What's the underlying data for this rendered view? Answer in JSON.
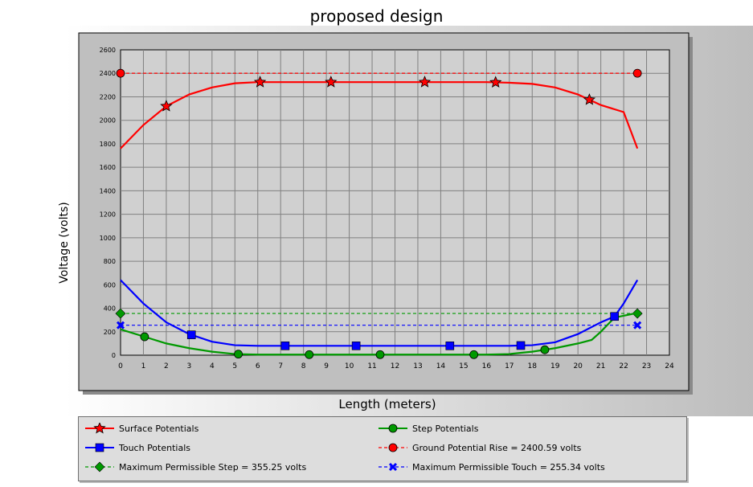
{
  "chart_data": {
    "type": "line",
    "title": "proposed design",
    "xlabel": "Length (meters)",
    "ylabel": "Voltage (volts)",
    "xlim": [
      0,
      24
    ],
    "ylim": [
      0,
      2600
    ],
    "x_ticks": [
      "0",
      "1",
      "2",
      "3",
      "4",
      "5",
      "6",
      "7",
      "8",
      "9",
      "10",
      "11",
      "12",
      "13",
      "14",
      "15",
      "16",
      "17",
      "18",
      "19",
      "20",
      "21",
      "22",
      "23",
      "24"
    ],
    "y_ticks": [
      "0",
      "200",
      "400",
      "600",
      "800",
      "1000",
      "1200",
      "1400",
      "1600",
      "1800",
      "2000",
      "2200",
      "2400",
      "2600"
    ],
    "grid": true,
    "legend_position": "bottom",
    "series": [
      {
        "name": "Surface Potentials",
        "color": "#ff0000",
        "marker": "star",
        "style": "solid",
        "x": [
          0,
          1,
          2,
          3,
          4,
          5,
          6,
          7,
          8,
          9,
          10,
          11,
          12,
          13,
          14,
          15,
          16,
          17,
          18,
          19,
          20,
          21,
          22,
          22.6
        ],
        "y": [
          1760,
          1960,
          2120,
          2220,
          2280,
          2315,
          2325,
          2325,
          2325,
          2325,
          2325,
          2325,
          2325,
          2325,
          2325,
          2325,
          2325,
          2320,
          2310,
          2280,
          2220,
          2130,
          2070,
          1760
        ],
        "marker_x": [
          2,
          6.1,
          9.2,
          13.3,
          16.4,
          20.5
        ]
      },
      {
        "name": "Step Potentials",
        "color": "#009900",
        "marker": "circle",
        "style": "solid",
        "x": [
          0,
          1,
          2,
          3,
          4,
          5,
          6,
          7,
          8,
          9,
          10,
          11,
          12,
          13,
          14,
          15,
          16,
          17,
          18,
          19,
          20,
          20.6,
          21,
          21.6,
          22.6
        ],
        "y": [
          220,
          160,
          100,
          60,
          30,
          10,
          5,
          5,
          5,
          5,
          5,
          5,
          5,
          5,
          5,
          5,
          5,
          10,
          30,
          60,
          100,
          130,
          200,
          320,
          360
        ],
        "marker_x": [
          1.05,
          5.15,
          8.25,
          11.35,
          15.45,
          18.55
        ]
      },
      {
        "name": "Touch Potentials",
        "color": "#0000ff",
        "marker": "square",
        "style": "solid",
        "x": [
          0,
          1,
          2,
          3,
          4,
          5,
          6,
          7,
          8,
          9,
          10,
          11,
          12,
          13,
          14,
          15,
          16,
          17,
          18,
          19,
          20,
          21,
          21.6,
          22,
          22.6
        ],
        "y": [
          640,
          440,
          280,
          180,
          115,
          85,
          80,
          80,
          80,
          80,
          80,
          80,
          80,
          80,
          80,
          80,
          80,
          80,
          85,
          110,
          180,
          280,
          330,
          440,
          640
        ],
        "marker_x": [
          3.1,
          7.2,
          10.3,
          14.4,
          17.5,
          21.6
        ]
      },
      {
        "name": "Ground Potential Rise = 2400.59 volts",
        "color": "#ff0000",
        "marker": "circle",
        "style": "dashed",
        "x": [
          0,
          22.6
        ],
        "y": [
          2400.59,
          2400.59
        ],
        "marker_x": [
          0,
          22.6
        ]
      },
      {
        "name": "Maximum Permissible Step = 355.25 volts",
        "color": "#009900",
        "marker": "diamond",
        "style": "dashed",
        "x": [
          0,
          22.6
        ],
        "y": [
          355.25,
          355.25
        ],
        "marker_x": [
          0,
          22.6
        ]
      },
      {
        "name": "Maximum Permissible Touch = 255.34 volts",
        "color": "#0000ff",
        "marker": "x",
        "style": "dashed",
        "x": [
          0,
          22.6
        ],
        "y": [
          255.34,
          255.34
        ],
        "marker_x": [
          0,
          22.6
        ]
      }
    ]
  },
  "legend": [
    {
      "label": "Surface Potentials",
      "series": 0
    },
    {
      "label": "Step Potentials",
      "series": 1
    },
    {
      "label": "Touch Potentials",
      "series": 2
    },
    {
      "label": "Ground Potential Rise = 2400.59 volts",
      "series": 3
    },
    {
      "label": "Maximum Permissible Step = 355.25 volts",
      "series": 4
    },
    {
      "label": "Maximum Permissible Touch = 255.34 volts",
      "series": 5
    }
  ]
}
